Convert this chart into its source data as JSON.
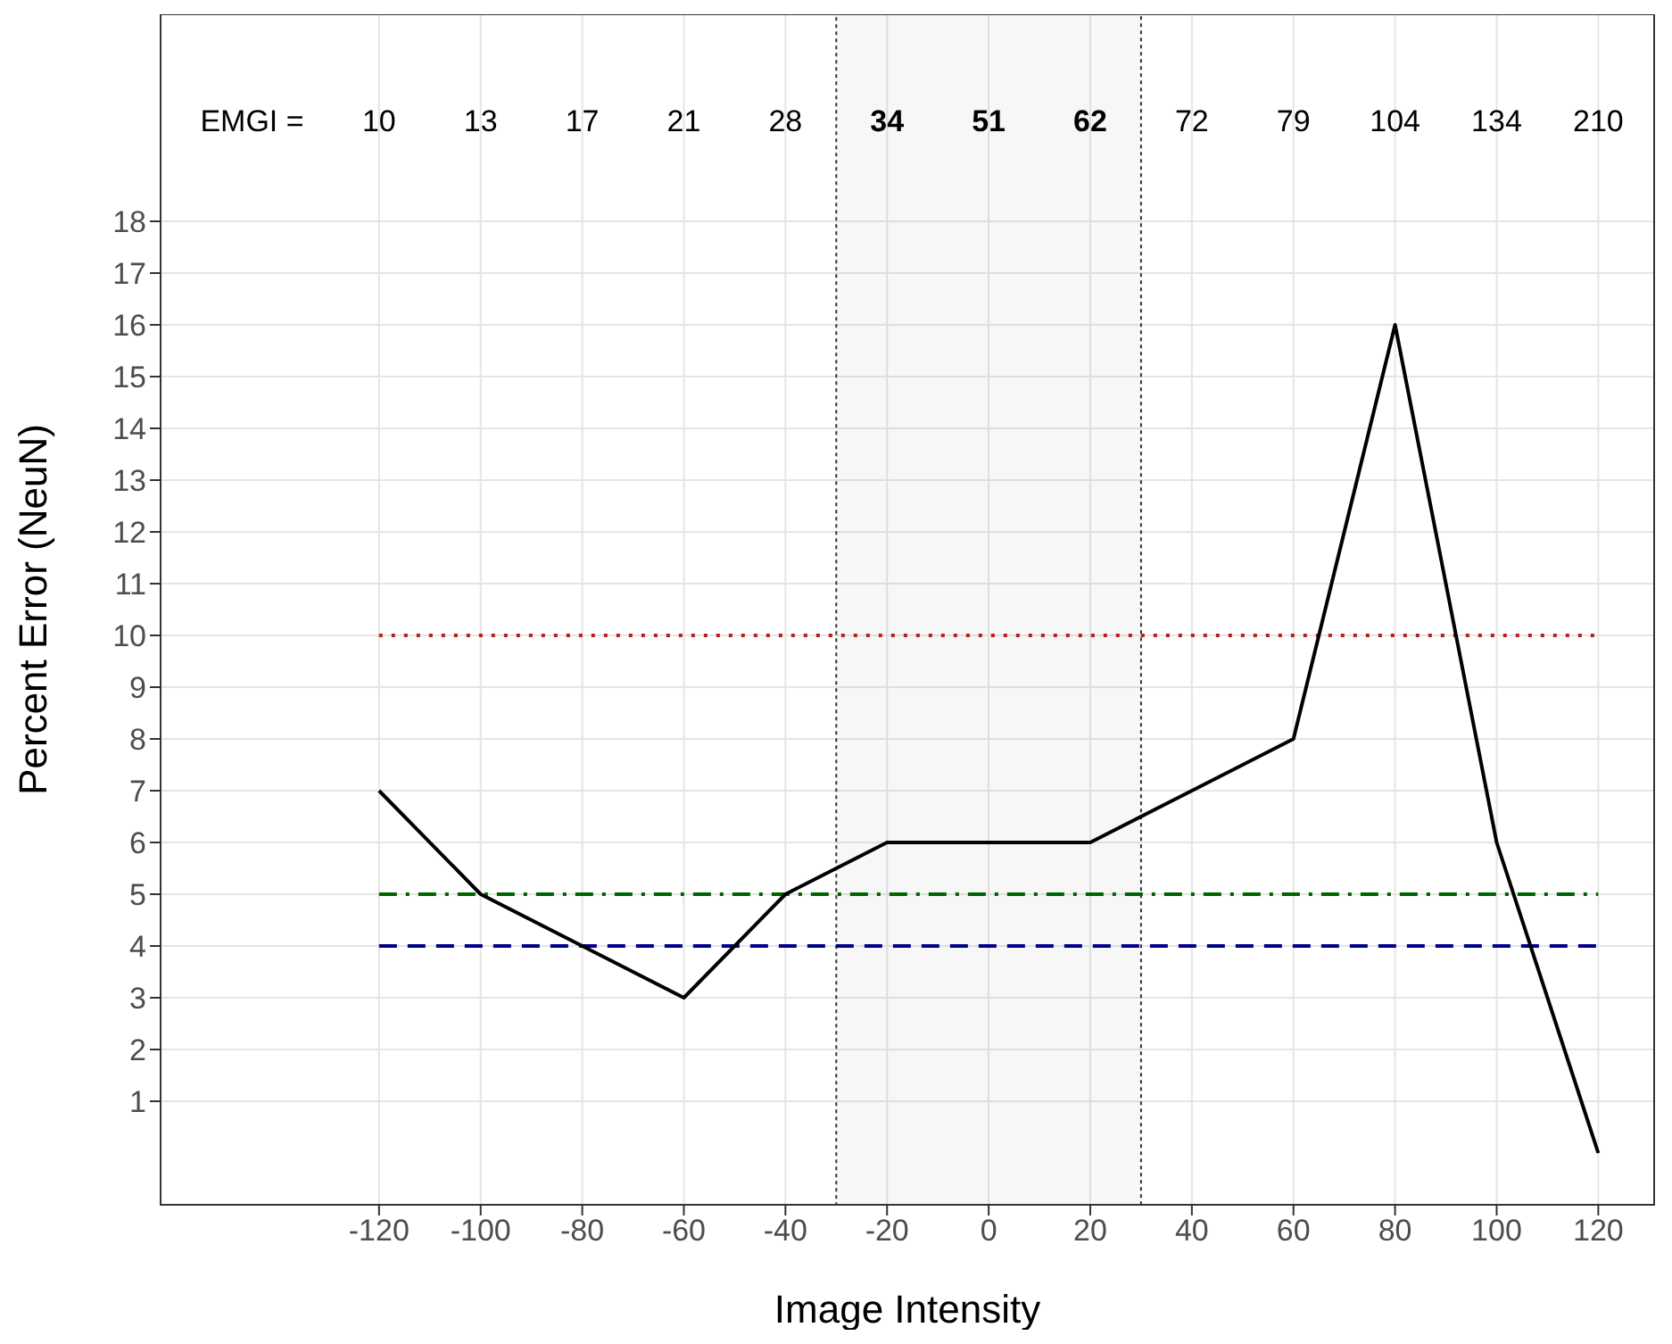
{
  "chart_data": {
    "type": "line",
    "xlabel": "Image Intensity",
    "ylabel": "Percent Error (NeuN)",
    "x": [
      -120,
      -100,
      -80,
      -60,
      -40,
      -20,
      0,
      20,
      40,
      60,
      80,
      100,
      120
    ],
    "series": [
      {
        "color": "#000000",
        "values": [
          7,
          5,
          4,
          3,
          5,
          6,
          6,
          6,
          7,
          8,
          16,
          6,
          0
        ]
      }
    ],
    "xlim": [
      -163,
      131
    ],
    "xticks": [
      -120,
      -100,
      -80,
      -60,
      -40,
      -20,
      0,
      20,
      40,
      60,
      80,
      100,
      120
    ],
    "ylim": [
      -1,
      22
    ],
    "yticks": [
      1,
      2,
      3,
      4,
      5,
      6,
      7,
      8,
      9,
      10,
      11,
      12,
      13,
      14,
      15,
      16,
      17,
      18
    ],
    "grid": true,
    "marker": "none",
    "line_style": "solid",
    "ref_lines": [
      {
        "axis": "y",
        "value": 10,
        "color": "#b22222",
        "line_style": "dotted"
      },
      {
        "axis": "y",
        "value": 5,
        "color": "#006400",
        "line_style": "dashdot"
      },
      {
        "axis": "y",
        "value": 4,
        "color": "#00008b",
        "line_style": "dashed"
      }
    ],
    "bands": [
      {
        "axis": "x",
        "from": -30,
        "to": 30,
        "color": "#333333"
      }
    ],
    "annotations": [
      "EMGI =",
      "10",
      "13",
      "17",
      "21",
      "28",
      "34",
      "51",
      "62",
      "72",
      "79",
      "104",
      "134",
      "210"
    ]
  }
}
